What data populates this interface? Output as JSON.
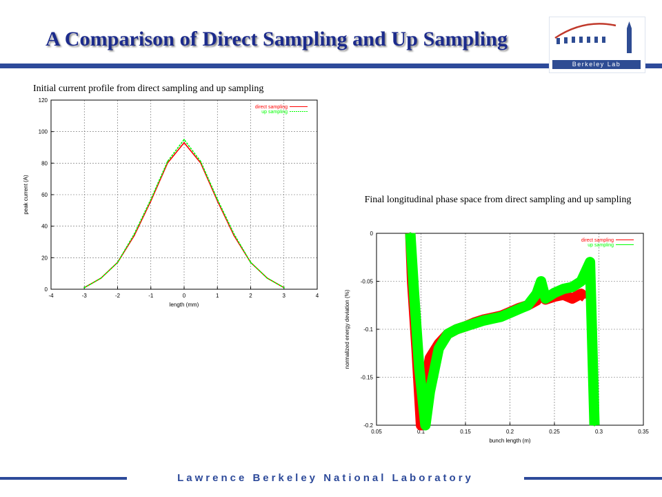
{
  "slide": {
    "title": "A Comparison of Direct Sampling and Up Sampling",
    "caption_left": "Initial current profile from direct sampling and up sampling",
    "caption_right": "Final longitudinal phase space from direct sampling and up sampling",
    "logo_text": "Berkeley Lab",
    "footer_text": "Lawrence Berkeley National Laboratory",
    "colors": {
      "title": "#1c2b8c",
      "bar": "#2d4a9a",
      "direct": "#ff0000",
      "up": "#00ff00"
    }
  },
  "chart_data": [
    {
      "type": "line",
      "xlabel": "length (mm)",
      "ylabel": "peak current (A)",
      "xlim": [
        -4,
        4
      ],
      "ylim": [
        0,
        120
      ],
      "xticks": [
        -4,
        -3,
        -2,
        -1,
        0,
        1,
        2,
        3,
        4
      ],
      "yticks": [
        0,
        20,
        40,
        60,
        80,
        100,
        120
      ],
      "grid": true,
      "legend": "top-right",
      "series": [
        {
          "name": "direct sampling",
          "color": "#ff0000",
          "style": "solid",
          "x": [
            -3.0,
            -2.5,
            -2.0,
            -1.5,
            -1.0,
            -0.5,
            0.0,
            0.5,
            1.0,
            1.5,
            2.0,
            2.5,
            3.0
          ],
          "values": [
            1,
            7,
            17,
            34,
            56,
            80,
            93,
            80,
            56,
            34,
            17,
            7,
            1
          ]
        },
        {
          "name": "up sampling",
          "color": "#00ff00",
          "style": "dashed",
          "x": [
            -3.0,
            -2.5,
            -2.0,
            -1.5,
            -1.0,
            -0.5,
            0.0,
            0.5,
            1.0,
            1.5,
            2.0,
            2.5,
            3.0
          ],
          "values": [
            1,
            7,
            17,
            35,
            57,
            81,
            95,
            81,
            57,
            35,
            17,
            7,
            1
          ]
        }
      ]
    },
    {
      "type": "scatter",
      "xlabel": "bunch length (m)",
      "ylabel": "normalized energy deviation (%)",
      "xlim": [
        0.05,
        0.35
      ],
      "ylim": [
        -0.2,
        0
      ],
      "xticks": [
        0.05,
        0.1,
        0.15,
        0.2,
        0.25,
        0.3,
        0.35
      ],
      "yticks": [
        0,
        -0.05,
        -0.1,
        -0.15,
        -0.2
      ],
      "grid": true,
      "legend": "top-right",
      "series": [
        {
          "name": "direct sampling",
          "color": "#ff0000",
          "x": [
            0.088,
            0.09,
            0.095,
            0.1,
            0.104,
            0.11,
            0.12,
            0.13,
            0.14,
            0.15,
            0.16,
            0.17,
            0.18,
            0.19,
            0.2,
            0.21,
            0.22,
            0.23,
            0.235,
            0.24,
            0.25,
            0.26,
            0.27,
            0.28,
            0.285
          ],
          "values": [
            0.0,
            -0.05,
            -0.12,
            -0.2,
            -0.16,
            -0.13,
            -0.115,
            -0.105,
            -0.1,
            -0.097,
            -0.093,
            -0.09,
            -0.088,
            -0.086,
            -0.082,
            -0.078,
            -0.075,
            -0.07,
            -0.058,
            -0.069,
            -0.066,
            -0.064,
            -0.068,
            -0.063,
            -0.067
          ]
        },
        {
          "name": "up sampling",
          "color": "#00ff00",
          "x": [
            0.088,
            0.092,
            0.098,
            0.105,
            0.11,
            0.12,
            0.13,
            0.14,
            0.15,
            0.16,
            0.17,
            0.18,
            0.19,
            0.2,
            0.21,
            0.22,
            0.23,
            0.235,
            0.24,
            0.25,
            0.26,
            0.27,
            0.28,
            0.29,
            0.295
          ],
          "values": [
            0.0,
            -0.06,
            -0.14,
            -0.2,
            -0.165,
            -0.12,
            -0.105,
            -0.1,
            -0.097,
            -0.094,
            -0.091,
            -0.089,
            -0.087,
            -0.083,
            -0.079,
            -0.075,
            -0.063,
            -0.05,
            -0.068,
            -0.062,
            -0.058,
            -0.056,
            -0.05,
            -0.03,
            -0.2
          ]
        }
      ]
    }
  ]
}
